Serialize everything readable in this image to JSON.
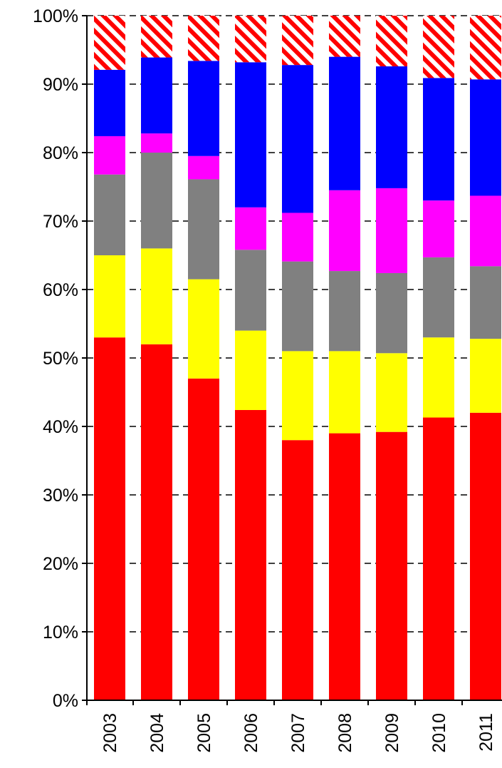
{
  "chart_data": {
    "type": "bar",
    "stacked": true,
    "normalized": true,
    "categories": [
      "2003",
      "2004",
      "2005",
      "2006",
      "2007",
      "2008",
      "2009",
      "2010",
      "2011"
    ],
    "series": [
      {
        "color": "#ff0000",
        "pattern": "solid",
        "values": [
          53.0,
          52.0,
          47.0,
          42.4,
          38.0,
          39.0,
          39.2,
          41.3,
          42.0
        ]
      },
      {
        "color": "#ffff00",
        "pattern": "solid",
        "values": [
          12.0,
          14.0,
          14.5,
          11.6,
          13.0,
          12.0,
          11.5,
          11.7,
          10.8
        ]
      },
      {
        "color": "#808080",
        "pattern": "solid",
        "values": [
          11.8,
          14.0,
          14.6,
          11.8,
          13.1,
          11.7,
          11.7,
          11.7,
          10.6
        ]
      },
      {
        "color": "#ff00ff",
        "pattern": "solid",
        "values": [
          5.6,
          2.8,
          3.4,
          6.2,
          7.1,
          11.8,
          12.4,
          8.3,
          10.3
        ]
      },
      {
        "color": "#0000ff",
        "pattern": "solid",
        "values": [
          9.7,
          11.1,
          13.9,
          21.2,
          21.6,
          19.5,
          17.8,
          17.9,
          17.0
        ]
      },
      {
        "color": "#ff0000",
        "pattern": "hatched",
        "values": [
          7.9,
          6.1,
          6.6,
          6.8,
          7.2,
          6.0,
          7.4,
          9.1,
          9.3
        ]
      }
    ],
    "ylim": [
      0,
      100
    ],
    "yticks": [
      "0%",
      "10%",
      "20%",
      "30%",
      "40%",
      "50%",
      "60%",
      "70%",
      "80%",
      "90%",
      "100%"
    ],
    "grid": "dashed horizontal",
    "title": "",
    "xlabel": "",
    "ylabel": ""
  }
}
